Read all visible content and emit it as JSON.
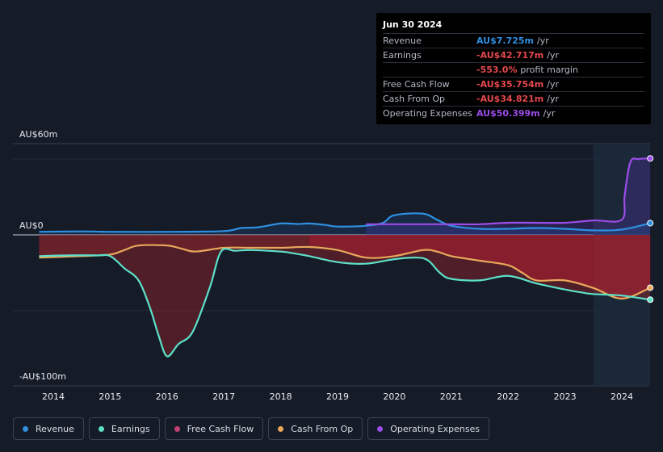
{
  "tooltip": {
    "date": "Jun 30 2024",
    "rows": [
      {
        "label": "Revenue",
        "value": "AU$7.725m",
        "unit": "/yr",
        "color": "#2f8fe0"
      },
      {
        "label": "Earnings",
        "value": "-AU$42.717m",
        "unit": "/yr",
        "color": "#e5484d"
      },
      {
        "label": "",
        "value": "-553.0%",
        "unit": "profit margin",
        "color": "#e5484d"
      },
      {
        "label": "Free Cash Flow",
        "value": "-AU$35.754m",
        "unit": "/yr",
        "color": "#e5484d"
      },
      {
        "label": "Cash From Op",
        "value": "-AU$34.821m",
        "unit": "/yr",
        "color": "#e5484d"
      },
      {
        "label": "Operating Expenses",
        "value": "AU$50.399m",
        "unit": "/yr",
        "color": "#9b4de8"
      }
    ]
  },
  "axis": {
    "top_label": "AU$60m",
    "zero_label": "AU$0",
    "bottom_label": "-AU$100m"
  },
  "legend": [
    {
      "label": "Revenue",
      "color": "#2f8fe0"
    },
    {
      "label": "Earnings",
      "color": "#5ce0c8"
    },
    {
      "label": "Free Cash Flow",
      "color": "#c2416f"
    },
    {
      "label": "Cash From Op",
      "color": "#e9a85a"
    },
    {
      "label": "Operating Expenses",
      "color": "#9b4de8"
    }
  ],
  "chart_data": {
    "type": "line",
    "title": "",
    "ylim": [
      -100,
      60
    ],
    "x_ticks": [
      "2014",
      "2015",
      "2016",
      "2017",
      "2018",
      "2019",
      "2020",
      "2021",
      "2022",
      "2023",
      "2024"
    ],
    "highlight_from": 2023.5,
    "series": [
      {
        "name": "Revenue",
        "color": "#2f8fe0",
        "x": [
          2013.75,
          2014.5,
          2015.0,
          2016.0,
          2017.0,
          2017.3,
          2017.6,
          2018.0,
          2018.3,
          2018.5,
          2018.8,
          2019.0,
          2019.5,
          2019.8,
          2020.0,
          2020.5,
          2020.75,
          2021.0,
          2021.5,
          2022.0,
          2022.5,
          2023.0,
          2023.5,
          2024.0,
          2024.5
        ],
        "y": [
          2,
          2.3,
          2,
          2,
          2.5,
          4.5,
          5,
          7.5,
          7.2,
          7.5,
          6.5,
          5.5,
          6,
          8,
          13,
          14,
          10,
          6,
          4,
          4,
          4.5,
          4,
          3,
          3.5,
          7.725
        ]
      },
      {
        "name": "Earnings",
        "color": "#5ce0c8",
        "x": [
          2013.75,
          2014.25,
          2014.75,
          2015.0,
          2015.25,
          2015.5,
          2015.7,
          2015.85,
          2016.0,
          2016.2,
          2016.45,
          2016.75,
          2016.95,
          2017.2,
          2017.5,
          2018.0,
          2018.2,
          2018.5,
          2019.0,
          2019.5,
          2020.0,
          2020.4,
          2020.6,
          2020.8,
          2021.0,
          2021.5,
          2022.0,
          2022.5,
          2023.0,
          2023.3,
          2023.5,
          2024.0,
          2024.5
        ],
        "y": [
          -14,
          -13.5,
          -13.5,
          -14,
          -22,
          -30,
          -48,
          -66,
          -80,
          -72,
          -64,
          -35,
          -11,
          -10.5,
          -10,
          -11,
          -12,
          -14,
          -18,
          -19,
          -16,
          -15,
          -17,
          -25,
          -29,
          -30,
          -27,
          -32,
          -36,
          -38,
          -39,
          -40,
          -42.717
        ]
      },
      {
        "name": "Free Cash Flow",
        "color": "#c2416f",
        "x": [
          2018.5,
          2019.0,
          2019.5,
          2020.0,
          2020.5,
          2020.75,
          2021.0,
          2021.5,
          2022.0,
          2022.3,
          2022.5,
          2023.0,
          2023.5,
          2024.0,
          2024.5
        ],
        "y": [
          -7,
          -9,
          -15,
          -14,
          -11,
          -11,
          -14,
          -17,
          -20,
          -26,
          -30,
          -30,
          -36,
          -42,
          -35.754
        ]
      },
      {
        "name": "Cash From Op",
        "color": "#e9a85a",
        "x": [
          2013.75,
          2014.5,
          2015.0,
          2015.25,
          2015.5,
          2016.0,
          2016.25,
          2016.5,
          2017.0,
          2017.5,
          2018.0,
          2018.5,
          2019.0,
          2019.5,
          2020.0,
          2020.5,
          2020.75,
          2021.0,
          2021.5,
          2022.0,
          2022.25,
          2022.5,
          2023.0,
          2023.5,
          2024.0,
          2024.5
        ],
        "y": [
          -15,
          -14,
          -13,
          -10,
          -7,
          -7,
          -9,
          -11,
          -8.5,
          -8.5,
          -8.5,
          -8,
          -10,
          -15,
          -14,
          -10,
          -11,
          -14,
          -17,
          -20,
          -25,
          -30,
          -30,
          -35,
          -42,
          -34.821
        ]
      },
      {
        "name": "Operating Expenses",
        "color": "#9b4de8",
        "x": [
          2019.5,
          2020.0,
          2020.5,
          2021.0,
          2021.5,
          2022.0,
          2022.5,
          2023.0,
          2023.5,
          2024.0,
          2024.05,
          2024.15,
          2024.3,
          2024.5
        ],
        "y": [
          7,
          7,
          7,
          7,
          7,
          8,
          8,
          8,
          9.5,
          10,
          26,
          48,
          50,
          50.399
        ]
      }
    ]
  }
}
